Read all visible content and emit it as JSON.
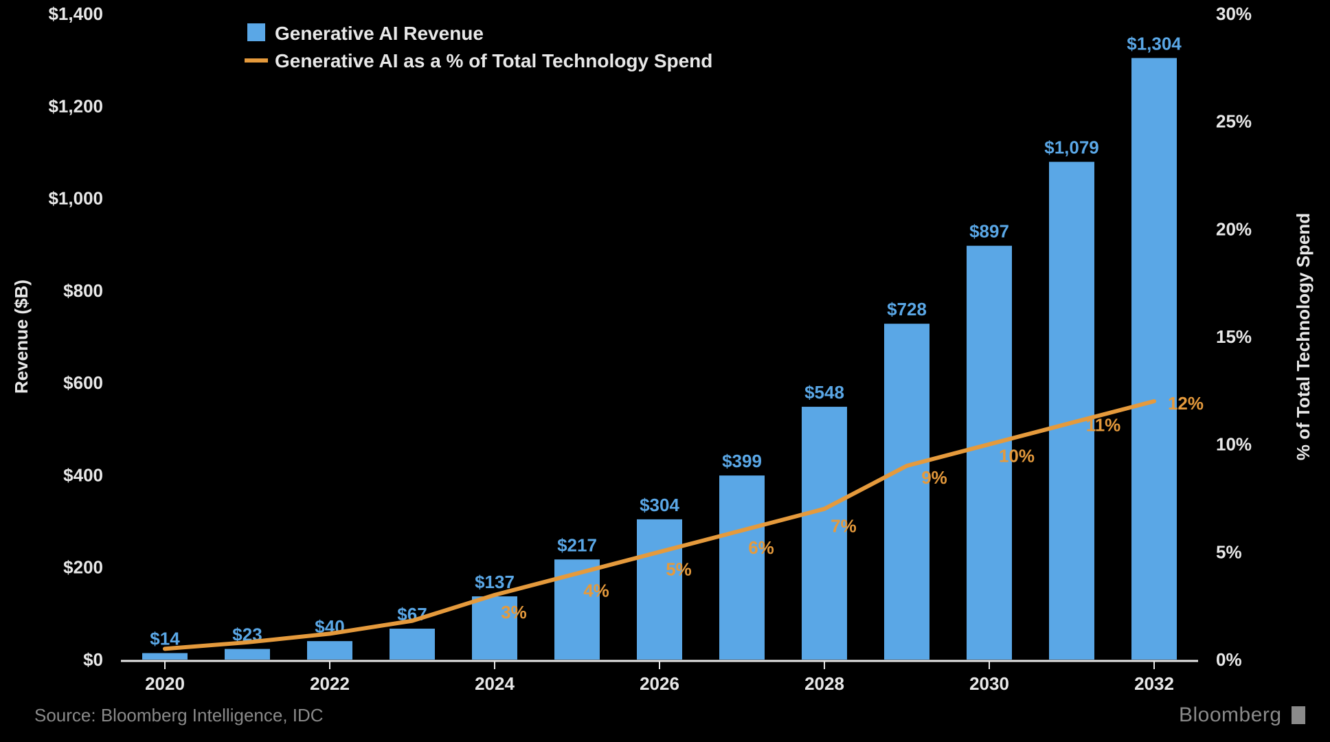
{
  "chart": {
    "type": "bar+line",
    "background_color": "#000000",
    "legend": {
      "items": [
        {
          "kind": "bar",
          "label": "Generative AI Revenue",
          "color": "#5aa7e6"
        },
        {
          "kind": "line",
          "label": "Generative AI as a % of Total Technology Spend",
          "color": "#e59a3c"
        }
      ],
      "text_color": "#e8e8e8",
      "fontsize": 28
    },
    "categories": [
      "2020",
      "2021",
      "2022",
      "2023",
      "2024",
      "2025",
      "2026",
      "2027",
      "2028",
      "2029",
      "2030",
      "2031",
      "2032"
    ],
    "x_tick_show": [
      "2020",
      "2022",
      "2024",
      "2026",
      "2028",
      "2030",
      "2032"
    ],
    "bars": {
      "label": "Generative AI Revenue",
      "color": "#5aa7e6",
      "values": [
        14,
        23,
        40,
        67,
        137,
        217,
        304,
        399,
        548,
        728,
        897,
        1079,
        1304
      ],
      "value_labels": [
        "$14",
        "$23",
        "$40",
        "$67",
        "$137",
        "$217",
        "$304",
        "$399",
        "$548",
        "$728",
        "$897",
        "$1,079",
        "$1,304"
      ],
      "label_color": "#5aa7e6",
      "label_fontsize": 26,
      "bar_width_ratio": 0.55
    },
    "line": {
      "label": "Generative AI as a % of Total Technology Spend",
      "color": "#e59a3c",
      "values_pct": [
        0.5,
        0.8,
        1.2,
        1.8,
        3,
        4,
        5,
        6,
        7,
        9,
        10,
        11,
        12
      ],
      "value_labels": [
        "",
        "",
        "",
        "",
        "3%",
        "4%",
        "5%",
        "6%",
        "7%",
        "9%",
        "10%",
        "11%",
        "12%"
      ],
      "label_color": "#e59a3c",
      "label_fontsize": 26,
      "line_width": 6
    },
    "y_left": {
      "label": "Revenue ($B)",
      "min": 0,
      "max": 1400,
      "step": 200,
      "tick_labels": [
        "$0",
        "$200",
        "$400",
        "$600",
        "$800",
        "$1,000",
        "$1,200",
        "$1,400"
      ],
      "label_color": "#e8e8e8",
      "label_fontsize": 28
    },
    "y_right": {
      "label": "% of Total Technology Spend",
      "min": 0,
      "max": 30,
      "step": 5,
      "tick_labels": [
        "0%",
        "5%",
        "10%",
        "15%",
        "20%",
        "25%",
        "30%"
      ],
      "label_color": "#e8e8e8",
      "label_fontsize": 28
    },
    "axis_line_color": "#e8e8e8",
    "grid": false,
    "tick_color": "#e8e8e8",
    "tick_fontsize": 26
  },
  "footer": {
    "source": "Source: Bloomberg Intelligence, IDC",
    "brand": "Bloomberg",
    "source_color": "#8a8a8a",
    "brand_color": "#8a8a8a"
  }
}
